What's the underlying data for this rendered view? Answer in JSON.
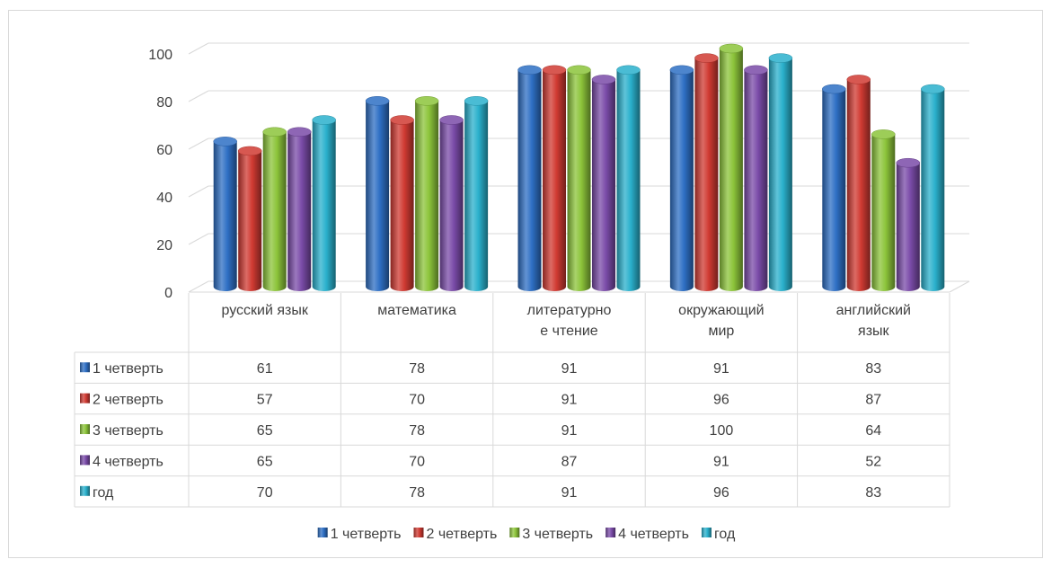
{
  "chart_data": {
    "type": "bar",
    "categories": [
      [
        "русский язык"
      ],
      [
        "математика"
      ],
      [
        "литературно",
        "е чтение"
      ],
      [
        "окружающий",
        "мир"
      ],
      [
        "английский",
        "язык"
      ]
    ],
    "series": [
      {
        "name": "1 четверть",
        "values": [
          61,
          78,
          91,
          91,
          83
        ],
        "color": "#2e6fc4"
      },
      {
        "name": "2 четверть",
        "values": [
          57,
          70,
          91,
          96,
          87
        ],
        "color": "#d03a32"
      },
      {
        "name": "3 четверть",
        "values": [
          65,
          78,
          91,
          100,
          64
        ],
        "color": "#8cc43a"
      },
      {
        "name": "4 четверть",
        "values": [
          65,
          70,
          87,
          91,
          52
        ],
        "color": "#7a4ba8"
      },
      {
        "name": "год",
        "values": [
          70,
          78,
          91,
          96,
          83
        ],
        "color": "#2ab0cc"
      }
    ],
    "y_ticks": [
      "0",
      "20",
      "40",
      "60",
      "80",
      "100"
    ],
    "ylim": [
      0,
      100
    ],
    "grid": true,
    "style": "3d-cylinder",
    "data_table": true,
    "legend": {
      "position": "bottom",
      "entries": [
        "1 четверть",
        "2 четверть",
        "3 четверть",
        "4 четверть",
        "год"
      ]
    },
    "title": ""
  }
}
